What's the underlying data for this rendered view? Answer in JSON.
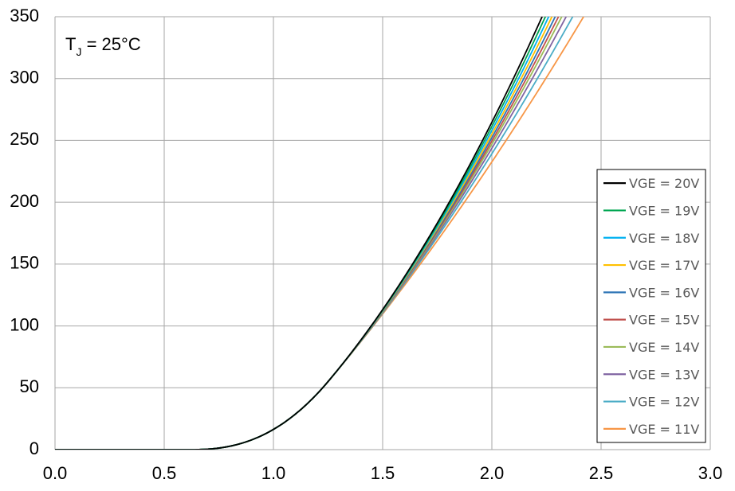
{
  "chart_data": {
    "type": "line",
    "title": "",
    "xlabel": "",
    "ylabel": "",
    "xlim": [
      0,
      3
    ],
    "ylim": [
      0,
      350
    ],
    "x_ticks": [
      "0.0",
      "0.5",
      "1.0",
      "1.5",
      "2.0",
      "2.5",
      "3.0"
    ],
    "y_ticks": [
      "0",
      "50",
      "100",
      "150",
      "200",
      "250",
      "300",
      "350"
    ],
    "grid": true,
    "legend_position": "right",
    "annotation": {
      "main": "T",
      "sub": "J",
      "rest": " = 25°C"
    },
    "series": [
      {
        "name": "VGE = 20V",
        "color": "#000000",
        "x_at_350": 2.23
      },
      {
        "name": "VGE = 19V",
        "color": "#00A651",
        "x_at_350": 2.245
      },
      {
        "name": "VGE = 18V",
        "color": "#00B0F0",
        "x_at_350": 2.26
      },
      {
        "name": "VGE = 17V",
        "color": "#FFC000",
        "x_at_350": 2.275
      },
      {
        "name": "VGE = 16V",
        "color": "#2E75B6",
        "x_at_350": 2.29
      },
      {
        "name": "VGE = 15V",
        "color": "#C0504D",
        "x_at_350": 2.305
      },
      {
        "name": "VGE = 14V",
        "color": "#9BBB59",
        "x_at_350": 2.32
      },
      {
        "name": "VGE = 13V",
        "color": "#8064A2",
        "x_at_350": 2.34
      },
      {
        "name": "VGE = 12V",
        "color": "#4BACC6",
        "x_at_350": 2.37
      },
      {
        "name": "VGE = 11V",
        "color": "#F79646",
        "x_at_350": 2.42
      }
    ]
  }
}
